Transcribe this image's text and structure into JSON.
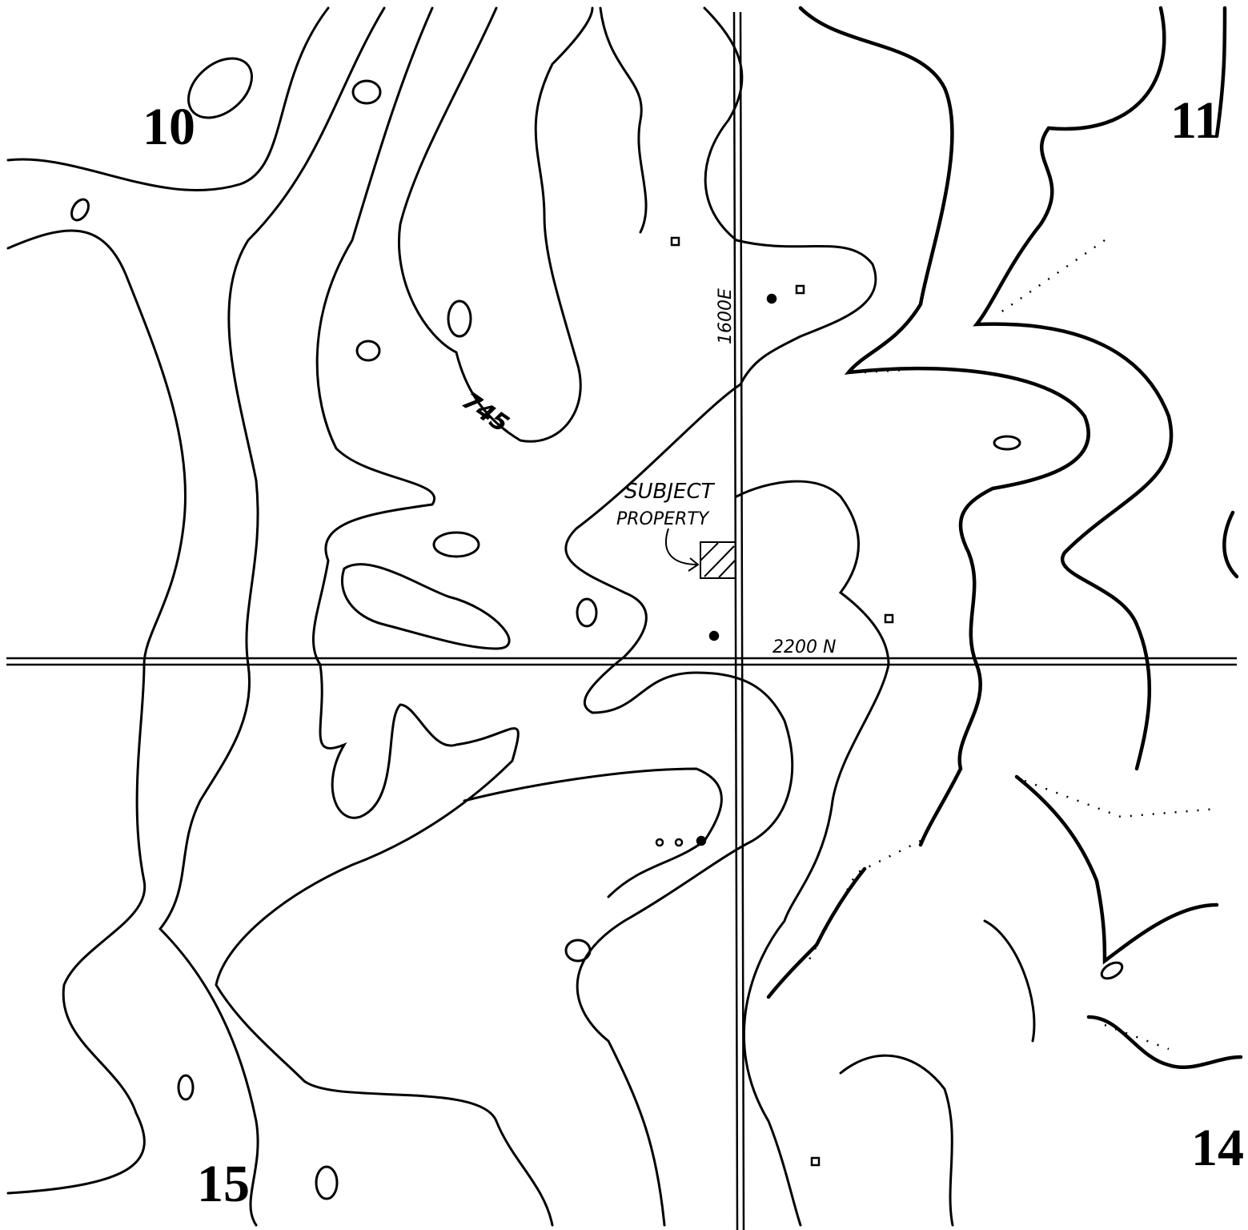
{
  "section_numbers": [
    "10",
    "11",
    "15",
    "14"
  ],
  "labels": {
    "contour": "745",
    "road_east": "1600E",
    "road_north": "2200 N",
    "subject": [
      "SUBJECT",
      "PROPERTY"
    ]
  }
}
